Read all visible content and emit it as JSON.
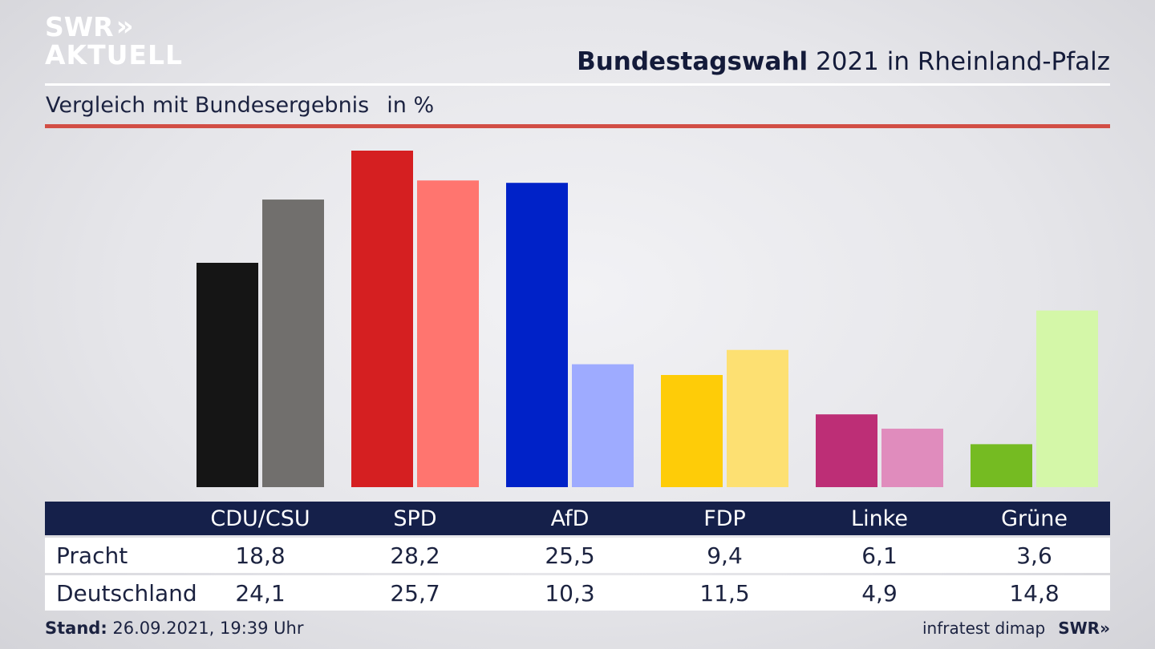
{
  "brand": {
    "line1": "SWR",
    "line2": "AKTUELL",
    "chevrons": "»",
    "footer_logo": "SWR»"
  },
  "header": {
    "title_bold": "Bundestagswahl",
    "title_rest": " 2021 in Rheinland-Pfalz"
  },
  "subtitle": {
    "text": "Vergleich mit Bundesergebnis",
    "unit": "in %"
  },
  "colors": {
    "header_bg": "#15204a",
    "accent_red": "#d24e45"
  },
  "chart_data": {
    "type": "bar",
    "title": "Bundestagswahl 2021 in Rheinland-Pfalz",
    "subtitle": "Vergleich mit Bundesergebnis in %",
    "categories": [
      "CDU/CSU",
      "SPD",
      "AfD",
      "FDP",
      "Linke",
      "Grüne"
    ],
    "series": [
      {
        "name": "Pracht",
        "values": [
          18.8,
          28.2,
          25.5,
          9.4,
          6.1,
          3.6
        ],
        "labels": [
          "18,8",
          "28,2",
          "25,5",
          "9,4",
          "6,1",
          "3,6"
        ]
      },
      {
        "name": "Deutschland",
        "values": [
          24.1,
          25.7,
          10.3,
          11.5,
          4.9,
          14.8
        ],
        "labels": [
          "24,1",
          "25,7",
          "10,3",
          "11,5",
          "4,9",
          "14,8"
        ]
      }
    ],
    "colors": [
      [
        "#151515",
        "#716f6d"
      ],
      [
        "#d51f21",
        "#ff756f"
      ],
      [
        "#0022c8",
        "#9eabff"
      ],
      [
        "#fecc08",
        "#fde072"
      ],
      [
        "#bd2e76",
        "#e08cbd"
      ],
      [
        "#75bb22",
        "#d4f7a8"
      ]
    ],
    "ylim": [
      0,
      28.2
    ],
    "grid": false,
    "legend": "table below chart"
  },
  "footer": {
    "stand_label": "Stand:",
    "stand_value": " 26.09.2021, 19:39 Uhr",
    "source": "infratest dimap"
  }
}
